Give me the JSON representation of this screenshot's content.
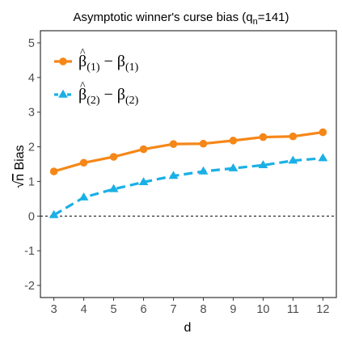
{
  "chart_data": {
    "type": "line",
    "title": "Asymptotic winner's curse bias (q",
    "title_subscript": "n",
    "title_suffix": "=141)",
    "xlabel": "d",
    "ylabel_radical": "√",
    "ylabel_var": "n",
    "ylabel_rest": "Bias",
    "x": [
      3,
      4,
      5,
      6,
      7,
      8,
      9,
      10,
      11,
      12
    ],
    "xlim": [
      2.55,
      12.45
    ],
    "ylim": [
      -2.35,
      5.35
    ],
    "xticks": [
      "3",
      "4",
      "5",
      "6",
      "7",
      "8",
      "9",
      "10",
      "11",
      "12"
    ],
    "yticks": [
      -2,
      -1,
      0,
      1,
      2,
      3,
      4,
      5
    ],
    "ytick_labels": [
      "-2",
      "-1",
      "0",
      "1",
      "2",
      "3",
      "4",
      "5"
    ],
    "reference_line": 0,
    "grid": false,
    "legend_position": "top-left",
    "series": [
      {
        "name_hat": "β",
        "name_sub1": "(1)",
        "name_minus": " − β",
        "name_sub2": "(1)",
        "color": "#F58718",
        "marker": "circle",
        "line_style": "solid",
        "values": [
          1.29,
          1.54,
          1.71,
          1.93,
          2.08,
          2.09,
          2.18,
          2.28,
          2.3,
          2.42
        ]
      },
      {
        "name_hat": "β",
        "name_sub1": "(2)",
        "name_minus": " − β",
        "name_sub2": "(2)",
        "color": "#1AB0E6",
        "marker": "triangle",
        "line_style": "dashed",
        "values": [
          0.03,
          0.54,
          0.78,
          0.98,
          1.16,
          1.29,
          1.38,
          1.47,
          1.6,
          1.67
        ]
      }
    ]
  }
}
